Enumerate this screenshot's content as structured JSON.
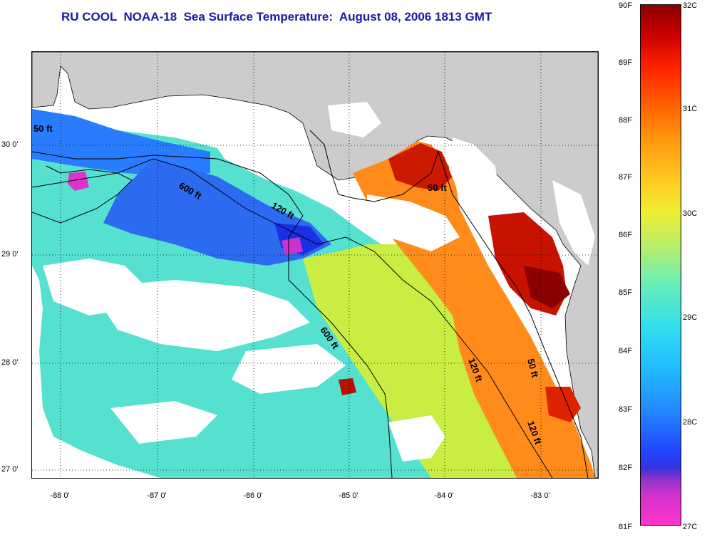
{
  "title": "RU COOL  NOAA-18  Sea Surface Temperature:  August 08, 2006 1813 GMT",
  "latitude_ticks": [
    "30 0'",
    "29 0'",
    "28 0'",
    "27 0'"
  ],
  "longitude_ticks": [
    "-88 0'",
    "-87 0'",
    "-86 0'",
    "-85 0'",
    "-84 0'",
    "-83 0'"
  ],
  "colorbar": {
    "fahrenheit": [
      "90F",
      "89F",
      "88F",
      "87F",
      "86F",
      "85F",
      "84F",
      "83F",
      "82F",
      "81F"
    ],
    "celsius": [
      "32C",
      "31C",
      "30C",
      "29C",
      "28C",
      "27C"
    ]
  },
  "contour_labels": [
    "50 ft",
    "600 ft",
    "120 ft",
    "50 ft",
    "120 ft",
    "600 ft",
    "120 ft",
    "50 ft"
  ],
  "colors": {
    "title": "#1a1aa6",
    "land": "#cccccc",
    "cloud_nodata": "#ffffff"
  }
}
